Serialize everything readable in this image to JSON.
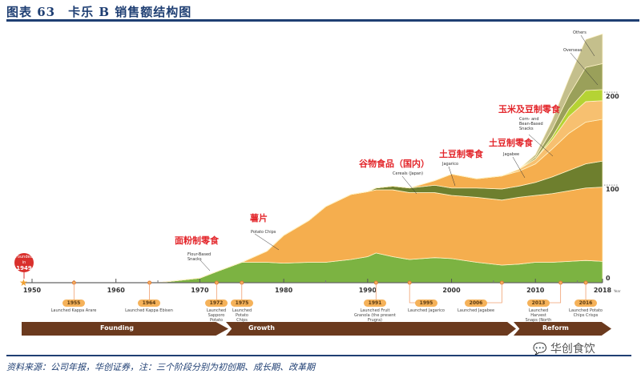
{
  "title": "图表 63　卡乐 B 销售额结构图",
  "source": "资料来源：公司年报，华创证券，注：三个阶段分别为初创期、成长期、改革期",
  "watermark": "华创食饮",
  "founded": {
    "line1": "Founded in",
    "year": "1949"
  },
  "stages": [
    "Founding",
    "Growth",
    "Reform"
  ],
  "milestones": [
    {
      "year": "1955",
      "text": "Launched Kappa Arare"
    },
    {
      "year": "1964",
      "text": "Launched Kappa Ebisen"
    },
    {
      "year": "1972",
      "text": "Launched Sapporo Potato"
    },
    {
      "year": "1975",
      "text": "Launched Potato Chips"
    },
    {
      "year": "1991",
      "text": "Launched Fruit Granola (the present Frugra)"
    },
    {
      "year": "1995",
      "text": "Launched Jagarico"
    },
    {
      "year": "2006",
      "text": "Launched Jagabee"
    },
    {
      "year": "2013",
      "text": "Launched Harvest Snaps (North America)"
    },
    {
      "year": "2016",
      "text": "Launched Potato Chips Crisps"
    }
  ],
  "annotations": [
    {
      "cn": "面粉制零食",
      "en": "Flour-Based Snacks"
    },
    {
      "cn": "薯片",
      "en": "Potato Chips"
    },
    {
      "cn": "谷物食品（国内）",
      "en": "Cereals (Japan)"
    },
    {
      "cn": "土豆制零食",
      "en": "Jagarico"
    },
    {
      "cn": "土豆制零食",
      "en": "Jagabee"
    },
    {
      "cn": "玉米及豆制零食",
      "en": "Corn- and Bean-Based Snacks"
    },
    {
      "cn": "",
      "en": "Overseas"
    },
    {
      "cn": "",
      "en": "Others"
    }
  ],
  "chart_data": {
    "type": "area",
    "stacked": true,
    "title": "卡乐 B 销售额结构图",
    "xlabel": "Year",
    "ylabel": "",
    "xticks": [
      "1950",
      "1960",
      "1970",
      "1980",
      "1990",
      "2000",
      "2010",
      "2018"
    ],
    "xunit": "Year",
    "yticks": [
      "0",
      "100",
      "200"
    ],
    "xlim": [
      1948,
      2018
    ],
    "ylim": [
      0,
      270
    ],
    "x": [
      1965,
      1970,
      1972,
      1975,
      1978,
      1980,
      1983,
      1985,
      1988,
      1990,
      1991,
      1993,
      1995,
      1998,
      2000,
      2003,
      2006,
      2008,
      2010,
      2012,
      2014,
      2016,
      2018
    ],
    "series": [
      {
        "name": "Flour-Based Snacks",
        "color": "#7cb342",
        "values": [
          0,
          5,
          12,
          22,
          22,
          21,
          22,
          22,
          25,
          28,
          32,
          28,
          25,
          27,
          26,
          22,
          19,
          20,
          22,
          22,
          23,
          24,
          23
        ]
      },
      {
        "name": "Potato Chips",
        "color": "#f5ae4e",
        "values": [
          0,
          0,
          0,
          0,
          12,
          30,
          45,
          60,
          70,
          70,
          68,
          72,
          72,
          70,
          68,
          70,
          70,
          72,
          72,
          74,
          76,
          78,
          80
        ]
      },
      {
        "name": "Cereals (Japan)",
        "color": "#6e7f2e",
        "values": [
          0,
          0,
          0,
          0,
          0,
          0,
          0,
          0,
          0,
          0,
          2,
          4,
          5,
          8,
          8,
          10,
          12,
          12,
          14,
          18,
          22,
          26,
          28
        ]
      },
      {
        "name": "Jagarico",
        "color": "#f5ae4e",
        "values": [
          0,
          0,
          0,
          0,
          0,
          0,
          0,
          0,
          0,
          0,
          0,
          0,
          0,
          5,
          15,
          10,
          14,
          16,
          20,
          30,
          40,
          45,
          45
        ]
      },
      {
        "name": "Jagabee",
        "color": "#f7c070",
        "values": [
          0,
          0,
          0,
          0,
          0,
          0,
          0,
          0,
          0,
          0,
          0,
          0,
          0,
          0,
          0,
          0,
          0,
          2,
          5,
          10,
          18,
          22,
          20
        ]
      },
      {
        "name": "Corn- and Bean-Based Snacks",
        "color": "#b5d334",
        "values": [
          0,
          0,
          0,
          0,
          0,
          0,
          0,
          0,
          0,
          0,
          0,
          0,
          0,
          0,
          0,
          0,
          0,
          0,
          0,
          3,
          8,
          12,
          12
        ]
      },
      {
        "name": "Overseas",
        "color": "#9aa05a",
        "values": [
          0,
          0,
          0,
          0,
          0,
          0,
          0,
          0,
          0,
          0,
          0,
          0,
          0,
          0,
          0,
          0,
          0,
          0,
          2,
          8,
          15,
          25,
          28
        ]
      },
      {
        "name": "Others",
        "color": "#c4bf8c",
        "values": [
          0,
          0,
          0,
          0,
          0,
          0,
          0,
          0,
          0,
          0,
          0,
          0,
          0,
          0,
          0,
          0,
          0,
          0,
          3,
          10,
          18,
          30,
          32
        ]
      }
    ]
  }
}
